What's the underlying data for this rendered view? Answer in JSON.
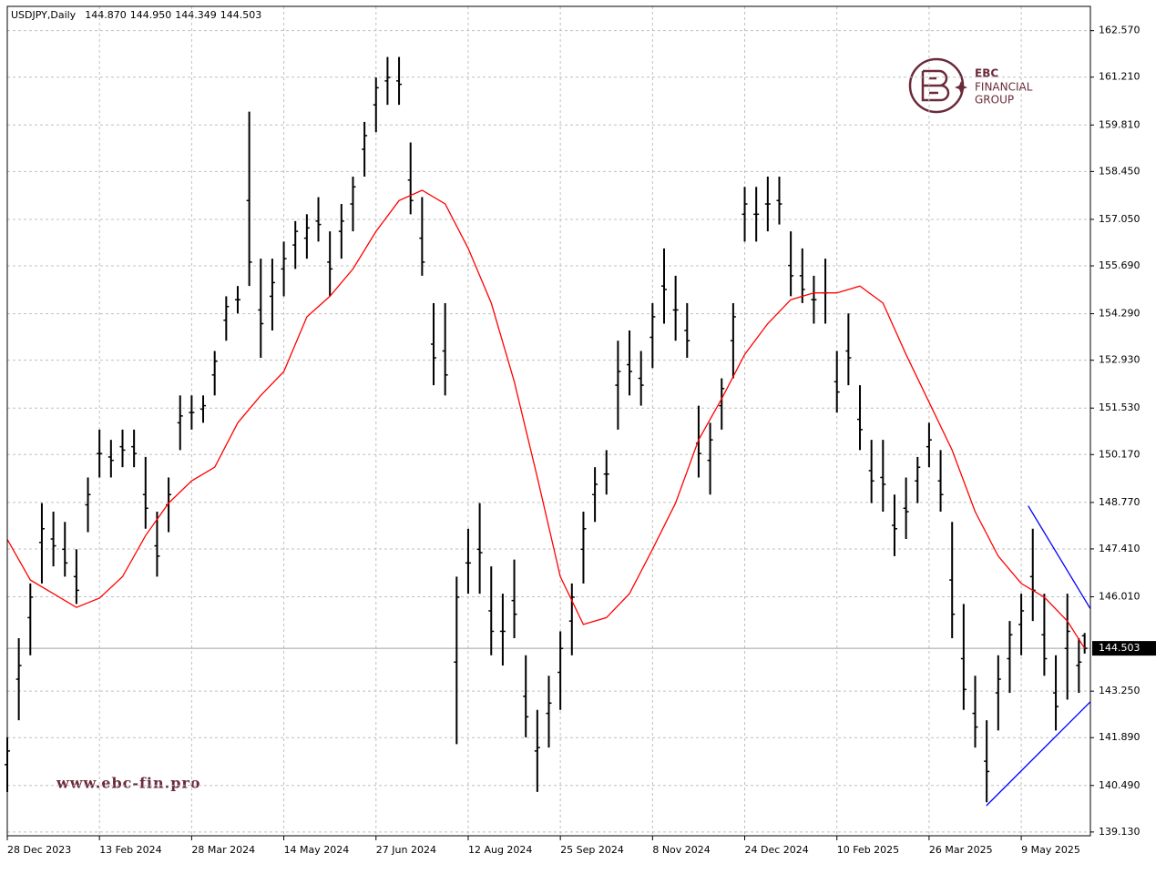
{
  "chart_data": {
    "type": "ohlc",
    "title": "USDJPY,Daily",
    "header_values": [
      "144.870",
      "144.950",
      "144.349",
      "144.503"
    ],
    "xlim": [
      0,
      376
    ],
    "xticks": [
      {
        "value": 0,
        "label": "28 Dec 2023"
      },
      {
        "value": 32,
        "label": "13 Feb 2024"
      },
      {
        "value": 64,
        "label": "28 Mar 2024"
      },
      {
        "value": 96,
        "label": "14 May 2024"
      },
      {
        "value": 128,
        "label": "27 Jun 2024"
      },
      {
        "value": 160,
        "label": "12 Aug 2024"
      },
      {
        "value": 192,
        "label": "25 Sep 2024"
      },
      {
        "value": 224,
        "label": "8 Nov 2024"
      },
      {
        "value": 256,
        "label": "24 Dec 2024"
      },
      {
        "value": 288,
        "label": "10 Feb 2025"
      },
      {
        "value": 320,
        "label": "26 Mar 2025"
      },
      {
        "value": 352,
        "label": "9 May 2025"
      }
    ],
    "ylim": [
      139.02,
      163.28
    ],
    "yticks": [
      {
        "value": 162.57,
        "label": "162.570"
      },
      {
        "value": 161.21,
        "label": "161.210"
      },
      {
        "value": 159.81,
        "label": "159.810"
      },
      {
        "value": 158.45,
        "label": "158.450"
      },
      {
        "value": 157.05,
        "label": "157.050"
      },
      {
        "value": 155.69,
        "label": "155.690"
      },
      {
        "value": 154.29,
        "label": "154.290"
      },
      {
        "value": 152.93,
        "label": "152.930"
      },
      {
        "value": 151.53,
        "label": "151.530"
      },
      {
        "value": 150.17,
        "label": "150.170"
      },
      {
        "value": 148.77,
        "label": "148.770"
      },
      {
        "value": 147.41,
        "label": "147.410"
      },
      {
        "value": 146.01,
        "label": "146.010"
      },
      {
        "value": 143.25,
        "label": "143.250"
      },
      {
        "value": 141.89,
        "label": "141.890"
      },
      {
        "value": 140.49,
        "label": "140.490"
      },
      {
        "value": 139.13,
        "label": "139.130"
      }
    ],
    "grid": true,
    "bar_color": "#000000",
    "ohlc": {
      "x": [
        0,
        4,
        8,
        12,
        16,
        20,
        24,
        28,
        32,
        36,
        40,
        44,
        48,
        52,
        56,
        60,
        64,
        68,
        72,
        76,
        80,
        84,
        88,
        92,
        96,
        100,
        104,
        108,
        112,
        116,
        120,
        124,
        128,
        132,
        136,
        140,
        144,
        148,
        152,
        156,
        160,
        164,
        168,
        172,
        176,
        180,
        184,
        188,
        192,
        196,
        200,
        204,
        208,
        212,
        216,
        220,
        224,
        228,
        232,
        236,
        240,
        244,
        248,
        252,
        256,
        260,
        264,
        268,
        272,
        276,
        280,
        284,
        288,
        292,
        296,
        300,
        304,
        308,
        312,
        316,
        320,
        324,
        328,
        332,
        336,
        340,
        344,
        348,
        352,
        356,
        360,
        364,
        368,
        372,
        374
      ],
      "open": [
        141.1,
        143.6,
        145.4,
        147.6,
        147.7,
        147.4,
        146.6,
        148.7,
        150.2,
        150.1,
        150.4,
        150.4,
        149.0,
        147.5,
        148.7,
        151.1,
        151.4,
        151.5,
        152.5,
        154.1,
        154.7,
        157.6,
        154.4,
        154.8,
        155.6,
        156.3,
        156.5,
        157.0,
        155.8,
        156.7,
        157.5,
        159.1,
        160.4,
        161.1,
        161.1,
        158.2,
        156.5,
        153.4,
        153.2,
        144.1,
        147.0,
        147.4,
        145.6,
        145.0,
        145.9,
        143.1,
        141.5,
        142.6,
        143.8,
        145.3,
        147.4,
        149.0,
        149.6,
        152.2,
        152.8,
        152.4,
        153.6,
        155.1,
        154.4,
        153.8,
        150.5,
        150.0,
        151.6,
        153.5,
        157.2,
        157.2,
        157.5,
        157.6,
        155.7,
        155.4,
        154.7,
        154.9,
        152.3,
        153.2,
        151.2,
        149.7,
        149.5,
        148.1,
        148.6,
        149.4,
        150.4,
        149.4,
        146.5,
        144.2,
        142.6,
        141.2,
        143.2,
        144.2,
        145.2,
        146.6,
        144.9,
        143.2,
        144.5,
        144.0,
        144.87
      ],
      "high": [
        141.9,
        144.8,
        146.4,
        148.75,
        148.5,
        148.2,
        147.4,
        149.5,
        150.9,
        150.6,
        150.9,
        150.9,
        150.1,
        148.5,
        149.5,
        151.9,
        151.9,
        151.9,
        153.2,
        154.8,
        155.1,
        160.2,
        155.9,
        155.9,
        156.4,
        157.0,
        157.2,
        157.7,
        156.7,
        157.5,
        158.3,
        159.9,
        161.2,
        161.8,
        161.8,
        159.3,
        157.7,
        154.6,
        154.6,
        146.6,
        148.0,
        148.75,
        146.9,
        146.1,
        147.1,
        144.3,
        142.7,
        143.7,
        145.0,
        146.4,
        148.5,
        149.8,
        150.3,
        153.5,
        153.8,
        153.2,
        154.6,
        156.2,
        155.4,
        154.6,
        151.6,
        151.1,
        152.4,
        154.6,
        158.0,
        158.0,
        158.3,
        158.3,
        156.7,
        156.2,
        155.4,
        155.9,
        153.2,
        154.3,
        152.2,
        150.6,
        150.6,
        149.0,
        149.5,
        150.1,
        151.1,
        150.3,
        148.2,
        145.8,
        143.7,
        142.4,
        144.3,
        145.3,
        146.1,
        148.0,
        146.1,
        144.3,
        146.1,
        144.8,
        144.95
      ],
      "low": [
        140.3,
        142.4,
        144.3,
        146.4,
        146.9,
        146.6,
        145.8,
        147.9,
        149.5,
        149.5,
        149.8,
        149.8,
        148.0,
        146.6,
        147.9,
        150.3,
        150.9,
        151.1,
        151.9,
        153.5,
        154.3,
        155.1,
        153.0,
        153.8,
        154.8,
        155.6,
        155.9,
        156.4,
        154.8,
        155.9,
        156.7,
        158.3,
        159.6,
        160.4,
        160.4,
        157.2,
        155.4,
        152.2,
        151.9,
        141.7,
        146.1,
        146.1,
        144.3,
        144.0,
        144.8,
        141.9,
        140.3,
        141.6,
        142.7,
        144.3,
        146.4,
        148.2,
        149.0,
        150.9,
        151.9,
        151.6,
        152.7,
        154.0,
        153.5,
        153.0,
        149.5,
        149.0,
        150.9,
        152.4,
        156.4,
        156.4,
        156.7,
        156.9,
        154.8,
        154.6,
        154.0,
        154.0,
        151.4,
        152.2,
        150.3,
        148.75,
        148.5,
        147.2,
        147.7,
        148.75,
        149.8,
        148.5,
        144.8,
        142.7,
        141.6,
        140.0,
        142.1,
        143.2,
        144.3,
        145.3,
        143.7,
        142.1,
        143.0,
        143.2,
        144.349
      ],
      "close": [
        141.5,
        144.0,
        146.0,
        148.0,
        147.5,
        147.0,
        146.2,
        149.0,
        150.2,
        150.0,
        150.3,
        150.2,
        148.6,
        147.2,
        149.0,
        151.3,
        151.4,
        151.6,
        152.9,
        154.5,
        154.7,
        155.8,
        154.0,
        155.2,
        155.9,
        156.7,
        156.8,
        156.9,
        155.6,
        157.0,
        158.0,
        159.5,
        160.9,
        161.2,
        161.0,
        157.6,
        155.8,
        153.0,
        152.5,
        146.0,
        147.0,
        147.3,
        145.0,
        145.0,
        145.5,
        142.5,
        141.6,
        142.9,
        144.5,
        146.0,
        148.0,
        149.3,
        149.6,
        152.6,
        152.6,
        152.2,
        154.2,
        155.0,
        154.4,
        153.5,
        150.2,
        150.6,
        152.1,
        154.2,
        157.5,
        157.2,
        157.5,
        157.5,
        155.4,
        155.0,
        154.7,
        154.9,
        152.0,
        153.0,
        150.9,
        149.4,
        149.3,
        148.0,
        148.5,
        149.8,
        150.6,
        149.0,
        145.5,
        143.3,
        142.2,
        140.9,
        143.6,
        144.9,
        145.6,
        146.2,
        144.2,
        142.8,
        145.0,
        144.1,
        144.503
      ]
    },
    "ma": {
      "color": "#ff0000",
      "x": [
        0,
        8,
        16,
        24,
        32,
        40,
        48,
        56,
        64,
        72,
        80,
        88,
        96,
        104,
        112,
        120,
        128,
        136,
        144,
        152,
        160,
        168,
        176,
        184,
        192,
        200,
        208,
        216,
        224,
        232,
        240,
        248,
        256,
        264,
        272,
        280,
        288,
        296,
        304,
        312,
        320,
        328,
        336,
        344,
        352,
        360,
        368,
        374
      ],
      "values": [
        147.69,
        146.5,
        146.1,
        145.7,
        145.97,
        146.6,
        147.8,
        148.75,
        149.4,
        149.8,
        151.1,
        151.9,
        152.6,
        154.2,
        154.8,
        155.6,
        156.7,
        157.6,
        157.9,
        157.5,
        156.2,
        154.6,
        152.3,
        149.5,
        146.6,
        145.2,
        145.4,
        146.1,
        147.4,
        148.75,
        150.6,
        151.8,
        153.1,
        154.0,
        154.7,
        154.9,
        154.9,
        155.1,
        154.6,
        153.1,
        151.7,
        150.3,
        148.5,
        147.2,
        146.4,
        146.0,
        145.3,
        144.5
      ]
    },
    "trendlines": [
      {
        "color": "#0000ff",
        "x": [
          354.4,
          376
        ],
        "values": [
          148.67,
          145.66
        ]
      },
      {
        "color": "#0000ff",
        "x": [
          339.9,
          376
        ],
        "values": [
          139.9,
          142.94
        ]
      }
    ],
    "last_price": {
      "value": 144.503,
      "label": "144.503"
    },
    "watermark": {
      "brand": "EBC",
      "line1": "FINANCIAL",
      "line2": "GROUP",
      "site": "www.ebc-fin.pro"
    }
  }
}
